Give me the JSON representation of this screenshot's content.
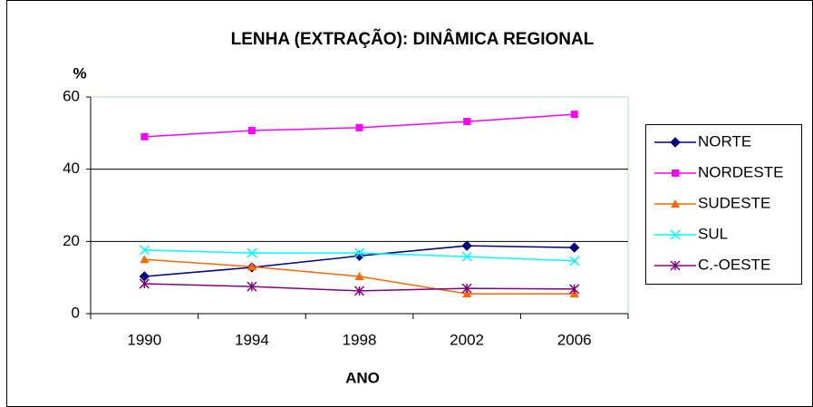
{
  "chart_data": {
    "type": "line",
    "title": "LENHA (EXTRAÇÃO):  DINÂMICA REGIONAL",
    "y_label": "%",
    "x_label": "ANO",
    "categories": [
      "1990",
      "1994",
      "1998",
      "2002",
      "2006"
    ],
    "series": [
      {
        "name": "NORTE",
        "color": "#000080",
        "marker": "diamond",
        "values": [
          10.3,
          12.8,
          16,
          18.8,
          18.3
        ]
      },
      {
        "name": "NORDESTE",
        "color": "#ff00ff",
        "marker": "square",
        "values": [
          49,
          50.7,
          51.5,
          53.2,
          55.2
        ]
      },
      {
        "name": "SUDESTE",
        "color": "#ff6600",
        "marker": "triangle",
        "values": [
          15,
          13,
          10.3,
          5.5,
          5.5
        ]
      },
      {
        "name": "SUL",
        "color": "#00ffff",
        "marker": "x",
        "values": [
          17.6,
          16.8,
          16.8,
          15.8,
          14.6
        ]
      },
      {
        "name": "C.-OESTE",
        "color": "#800080",
        "marker": "star",
        "values": [
          8.3,
          7.5,
          6.3,
          7,
          6.8
        ]
      }
    ],
    "ylim": [
      0,
      60
    ],
    "yticks": [
      0,
      20,
      40,
      60
    ],
    "grid": true,
    "legend": "right"
  }
}
